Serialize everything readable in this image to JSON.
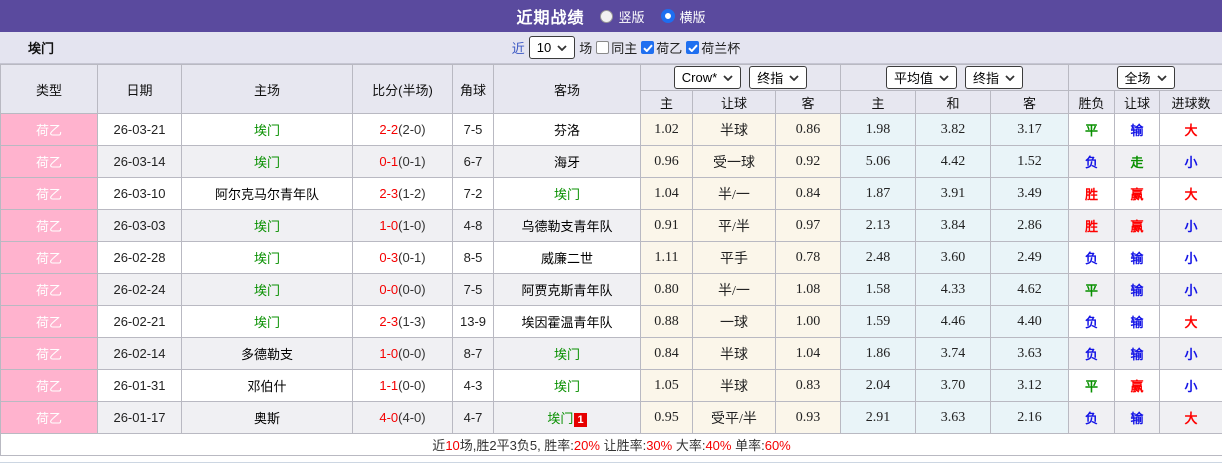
{
  "titlebar": {
    "title": "近期战绩",
    "options": [
      {
        "label": "竖版",
        "selected": false
      },
      {
        "label": "横版",
        "selected": true
      }
    ]
  },
  "filter": {
    "team": "埃门",
    "recent_label": "近",
    "recent_value": "10",
    "matches_label": "场",
    "same_home_label": "同主",
    "league_checkbox_label": "荷乙",
    "cup_checkbox_label": "荷兰杯"
  },
  "header": {
    "left_columns": [
      "类型",
      "日期",
      "主场",
      "比分(半场)",
      "角球",
      "客场"
    ],
    "odds_group": {
      "select1": "Crow*",
      "select2": "终指",
      "columns": [
        "主",
        "让球",
        "客"
      ]
    },
    "avg_group": {
      "select1": "平均值",
      "select2": "终指",
      "columns": [
        "主",
        "和",
        "客"
      ]
    },
    "result_group": {
      "select": "全场",
      "columns": [
        "胜负",
        "让球",
        "进球数"
      ]
    }
  },
  "rows": [
    {
      "type": "荷乙",
      "date": "26-03-21",
      "home": "埃门",
      "home_self": true,
      "score": "2-2",
      "half": "(2-0)",
      "corner": "7-5",
      "away": "芬洛",
      "away_self": false,
      "badge": "",
      "odds": [
        "1.02",
        "半球",
        "0.86"
      ],
      "avg": [
        "1.98",
        "3.82",
        "3.17"
      ],
      "results": [
        {
          "text": "平",
          "color": "green"
        },
        {
          "text": "输",
          "color": "blue"
        },
        {
          "text": "大",
          "color": "red"
        }
      ]
    },
    {
      "type": "荷乙",
      "date": "26-03-14",
      "home": "埃门",
      "home_self": true,
      "score": "0-1",
      "half": "(0-1)",
      "corner": "6-7",
      "away": "海牙",
      "away_self": false,
      "badge": "",
      "odds": [
        "0.96",
        "受一球",
        "0.92"
      ],
      "avg": [
        "5.06",
        "4.42",
        "1.52"
      ],
      "results": [
        {
          "text": "负",
          "color": "blue"
        },
        {
          "text": "走",
          "color": "green"
        },
        {
          "text": "小",
          "color": "blue"
        }
      ]
    },
    {
      "type": "荷乙",
      "date": "26-03-10",
      "home": "阿尔克马尔青年队",
      "home_self": false,
      "score": "2-3",
      "half": "(1-2)",
      "corner": "7-2",
      "away": "埃门",
      "away_self": true,
      "badge": "",
      "odds": [
        "1.04",
        "半/一",
        "0.84"
      ],
      "avg": [
        "1.87",
        "3.91",
        "3.49"
      ],
      "results": [
        {
          "text": "胜",
          "color": "red"
        },
        {
          "text": "赢",
          "color": "red"
        },
        {
          "text": "大",
          "color": "red"
        }
      ]
    },
    {
      "type": "荷乙",
      "date": "26-03-03",
      "home": "埃门",
      "home_self": true,
      "score": "1-0",
      "half": "(1-0)",
      "corner": "4-8",
      "away": "乌德勒支青年队",
      "away_self": false,
      "badge": "",
      "odds": [
        "0.91",
        "平/半",
        "0.97"
      ],
      "avg": [
        "2.13",
        "3.84",
        "2.86"
      ],
      "results": [
        {
          "text": "胜",
          "color": "red"
        },
        {
          "text": "赢",
          "color": "red"
        },
        {
          "text": "小",
          "color": "blue"
        }
      ]
    },
    {
      "type": "荷乙",
      "date": "26-02-28",
      "home": "埃门",
      "home_self": true,
      "score": "0-3",
      "half": "(0-1)",
      "corner": "8-5",
      "away": "威廉二世",
      "away_self": false,
      "badge": "",
      "odds": [
        "1.11",
        "平手",
        "0.78"
      ],
      "avg": [
        "2.48",
        "3.60",
        "2.49"
      ],
      "results": [
        {
          "text": "负",
          "color": "blue"
        },
        {
          "text": "输",
          "color": "blue"
        },
        {
          "text": "小",
          "color": "blue"
        }
      ]
    },
    {
      "type": "荷乙",
      "date": "26-02-24",
      "home": "埃门",
      "home_self": true,
      "score": "0-0",
      "half": "(0-0)",
      "corner": "7-5",
      "away": "阿贾克斯青年队",
      "away_self": false,
      "badge": "",
      "odds": [
        "0.80",
        "半/一",
        "1.08"
      ],
      "avg": [
        "1.58",
        "4.33",
        "4.62"
      ],
      "results": [
        {
          "text": "平",
          "color": "green"
        },
        {
          "text": "输",
          "color": "blue"
        },
        {
          "text": "小",
          "color": "blue"
        }
      ]
    },
    {
      "type": "荷乙",
      "date": "26-02-21",
      "home": "埃门",
      "home_self": true,
      "score": "2-3",
      "half": "(1-3)",
      "corner": "13-9",
      "away": "埃因霍温青年队",
      "away_self": false,
      "badge": "",
      "odds": [
        "0.88",
        "一球",
        "1.00"
      ],
      "avg": [
        "1.59",
        "4.46",
        "4.40"
      ],
      "results": [
        {
          "text": "负",
          "color": "blue"
        },
        {
          "text": "输",
          "color": "blue"
        },
        {
          "text": "大",
          "color": "red"
        }
      ]
    },
    {
      "type": "荷乙",
      "date": "26-02-14",
      "home": "多德勒支",
      "home_self": false,
      "score": "1-0",
      "half": "(0-0)",
      "corner": "8-7",
      "away": "埃门",
      "away_self": true,
      "badge": "",
      "odds": [
        "0.84",
        "半球",
        "1.04"
      ],
      "avg": [
        "1.86",
        "3.74",
        "3.63"
      ],
      "results": [
        {
          "text": "负",
          "color": "blue"
        },
        {
          "text": "输",
          "color": "blue"
        },
        {
          "text": "小",
          "color": "blue"
        }
      ]
    },
    {
      "type": "荷乙",
      "date": "26-01-31",
      "home": "邓伯什",
      "home_self": false,
      "score": "1-1",
      "half": "(0-0)",
      "corner": "4-3",
      "away": "埃门",
      "away_self": true,
      "badge": "",
      "odds": [
        "1.05",
        "半球",
        "0.83"
      ],
      "avg": [
        "2.04",
        "3.70",
        "3.12"
      ],
      "results": [
        {
          "text": "平",
          "color": "green"
        },
        {
          "text": "赢",
          "color": "red"
        },
        {
          "text": "小",
          "color": "blue"
        }
      ]
    },
    {
      "type": "荷乙",
      "date": "26-01-17",
      "home": "奥斯",
      "home_self": false,
      "score": "4-0",
      "half": "(4-0)",
      "corner": "4-7",
      "away": "埃门",
      "away_self": true,
      "badge": "1",
      "odds": [
        "0.95",
        "受平/半",
        "0.93"
      ],
      "avg": [
        "2.91",
        "3.63",
        "2.16"
      ],
      "results": [
        {
          "text": "负",
          "color": "blue"
        },
        {
          "text": "输",
          "color": "blue"
        },
        {
          "text": "大",
          "color": "red"
        }
      ]
    }
  ],
  "footer": {
    "segments": [
      {
        "text": "近",
        "red": false
      },
      {
        "text": "10",
        "red": true
      },
      {
        "text": "场,胜2平3负5, 胜率:",
        "red": false
      },
      {
        "text": "20%",
        "red": true
      },
      {
        "text": " 让胜率:",
        "red": false
      },
      {
        "text": "30%",
        "red": true
      },
      {
        "text": " 大率:",
        "red": false
      },
      {
        "text": "40%",
        "red": true
      },
      {
        "text": " 单率:",
        "red": false
      },
      {
        "text": "60%",
        "red": true
      }
    ]
  },
  "colors": {
    "accent_purple": "#5a4a9e",
    "type_pink": "#ffb3ce",
    "win_red": "#fe0000",
    "draw_green": "#089000",
    "lose_blue": "#1414e6",
    "odds_cream_bg": "#fbf6ea",
    "avg_blue_bg": "#e9f4f8",
    "checkbox_blue": "#1f6ff0"
  }
}
